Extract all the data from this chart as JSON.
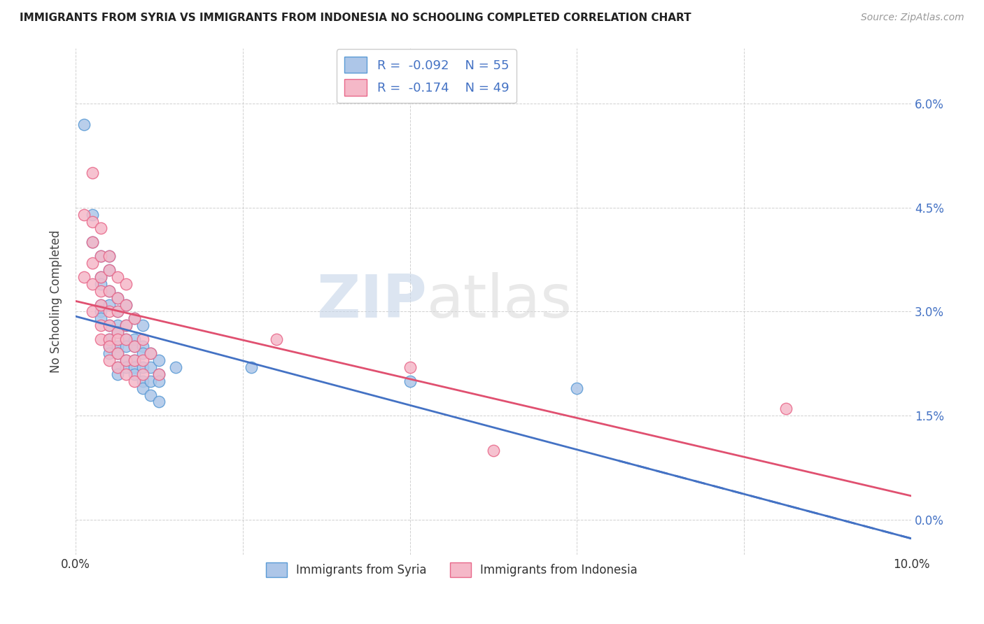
{
  "title": "IMMIGRANTS FROM SYRIA VS IMMIGRANTS FROM INDONESIA NO SCHOOLING COMPLETED CORRELATION CHART",
  "source": "Source: ZipAtlas.com",
  "ylabel": "No Schooling Completed",
  "xlim": [
    0.0,
    0.1
  ],
  "ylim": [
    -0.005,
    0.068
  ],
  "xticks": [
    0.0,
    0.02,
    0.04,
    0.06,
    0.08,
    0.1
  ],
  "xtick_labels": [
    "0.0%",
    "",
    "",
    "",
    "",
    "10.0%"
  ],
  "yticks": [
    0.0,
    0.015,
    0.03,
    0.045,
    0.06
  ],
  "ytick_labels": [
    "0.0%",
    "1.5%",
    "3.0%",
    "4.5%",
    "6.0%"
  ],
  "syria_color": "#adc6e8",
  "indonesia_color": "#f5b8c8",
  "syria_edge_color": "#5b9bd5",
  "indonesia_edge_color": "#e8688a",
  "syria_line_color": "#4472c4",
  "indonesia_line_color": "#e05070",
  "syria_R": -0.092,
  "syria_N": 55,
  "indonesia_R": -0.174,
  "indonesia_N": 49,
  "watermark_zip": "ZIP",
  "watermark_atlas": "atlas",
  "legend_label_syria": "Immigrants from Syria",
  "legend_label_indonesia": "Immigrants from Indonesia",
  "grid_color": "#cccccc",
  "right_tick_color": "#4472c4",
  "syria_points": [
    [
      0.001,
      0.057
    ],
    [
      0.002,
      0.044
    ],
    [
      0.002,
      0.04
    ],
    [
      0.003,
      0.038
    ],
    [
      0.003,
      0.035
    ],
    [
      0.003,
      0.034
    ],
    [
      0.003,
      0.031
    ],
    [
      0.003,
      0.03
    ],
    [
      0.003,
      0.029
    ],
    [
      0.004,
      0.038
    ],
    [
      0.004,
      0.036
    ],
    [
      0.004,
      0.033
    ],
    [
      0.004,
      0.031
    ],
    [
      0.004,
      0.028
    ],
    [
      0.004,
      0.026
    ],
    [
      0.004,
      0.025
    ],
    [
      0.004,
      0.024
    ],
    [
      0.005,
      0.032
    ],
    [
      0.005,
      0.03
    ],
    [
      0.005,
      0.028
    ],
    [
      0.005,
      0.027
    ],
    [
      0.005,
      0.025
    ],
    [
      0.005,
      0.024
    ],
    [
      0.005,
      0.022
    ],
    [
      0.005,
      0.021
    ],
    [
      0.006,
      0.031
    ],
    [
      0.006,
      0.028
    ],
    [
      0.006,
      0.026
    ],
    [
      0.006,
      0.025
    ],
    [
      0.006,
      0.023
    ],
    [
      0.006,
      0.022
    ],
    [
      0.007,
      0.029
    ],
    [
      0.007,
      0.026
    ],
    [
      0.007,
      0.025
    ],
    [
      0.007,
      0.023
    ],
    [
      0.007,
      0.022
    ],
    [
      0.007,
      0.021
    ],
    [
      0.008,
      0.028
    ],
    [
      0.008,
      0.025
    ],
    [
      0.008,
      0.024
    ],
    [
      0.008,
      0.022
    ],
    [
      0.008,
      0.02
    ],
    [
      0.008,
      0.019
    ],
    [
      0.009,
      0.024
    ],
    [
      0.009,
      0.022
    ],
    [
      0.009,
      0.02
    ],
    [
      0.009,
      0.018
    ],
    [
      0.01,
      0.023
    ],
    [
      0.01,
      0.021
    ],
    [
      0.01,
      0.02
    ],
    [
      0.01,
      0.017
    ],
    [
      0.012,
      0.022
    ],
    [
      0.021,
      0.022
    ],
    [
      0.04,
      0.02
    ],
    [
      0.06,
      0.019
    ]
  ],
  "indonesia_points": [
    [
      0.001,
      0.044
    ],
    [
      0.001,
      0.035
    ],
    [
      0.002,
      0.05
    ],
    [
      0.002,
      0.043
    ],
    [
      0.002,
      0.04
    ],
    [
      0.002,
      0.037
    ],
    [
      0.002,
      0.034
    ],
    [
      0.002,
      0.03
    ],
    [
      0.003,
      0.042
    ],
    [
      0.003,
      0.038
    ],
    [
      0.003,
      0.035
    ],
    [
      0.003,
      0.033
    ],
    [
      0.003,
      0.031
    ],
    [
      0.003,
      0.028
    ],
    [
      0.003,
      0.026
    ],
    [
      0.004,
      0.038
    ],
    [
      0.004,
      0.036
    ],
    [
      0.004,
      0.033
    ],
    [
      0.004,
      0.03
    ],
    [
      0.004,
      0.028
    ],
    [
      0.004,
      0.026
    ],
    [
      0.004,
      0.025
    ],
    [
      0.004,
      0.023
    ],
    [
      0.005,
      0.035
    ],
    [
      0.005,
      0.032
    ],
    [
      0.005,
      0.03
    ],
    [
      0.005,
      0.027
    ],
    [
      0.005,
      0.026
    ],
    [
      0.005,
      0.024
    ],
    [
      0.005,
      0.022
    ],
    [
      0.006,
      0.034
    ],
    [
      0.006,
      0.031
    ],
    [
      0.006,
      0.028
    ],
    [
      0.006,
      0.026
    ],
    [
      0.006,
      0.023
    ],
    [
      0.006,
      0.021
    ],
    [
      0.007,
      0.029
    ],
    [
      0.007,
      0.025
    ],
    [
      0.007,
      0.023
    ],
    [
      0.007,
      0.02
    ],
    [
      0.008,
      0.026
    ],
    [
      0.008,
      0.023
    ],
    [
      0.008,
      0.021
    ],
    [
      0.009,
      0.024
    ],
    [
      0.01,
      0.021
    ],
    [
      0.024,
      0.026
    ],
    [
      0.04,
      0.022
    ],
    [
      0.05,
      0.01
    ],
    [
      0.085,
      0.016
    ]
  ]
}
